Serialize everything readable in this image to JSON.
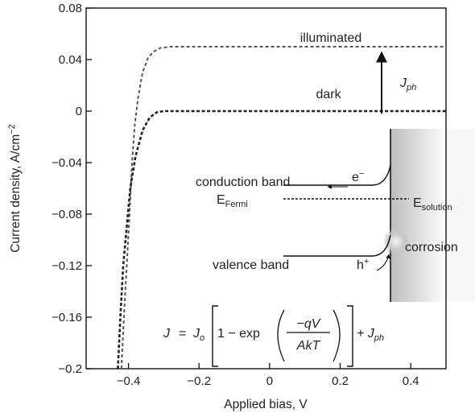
{
  "chart_data": {
    "type": "line",
    "xlabel": "Applied bias, V",
    "ylabel": "Current density, A/cm",
    "ylabel_superscript": "−2",
    "xlim": [
      -0.52,
      0.5
    ],
    "ylim": [
      -0.2,
      0.08
    ],
    "x_ticks": [
      {
        "v": -0.4,
        "label": "−0.4"
      },
      {
        "v": -0.2,
        "label": "−0.2"
      },
      {
        "v": 0,
        "label": "0"
      },
      {
        "v": 0.2,
        "label": "0.2"
      },
      {
        "v": 0.4,
        "label": "0.4"
      }
    ],
    "y_ticks": [
      {
        "v": 0.08,
        "label": "0.08"
      },
      {
        "v": 0.04,
        "label": "0.04"
      },
      {
        "v": 0,
        "label": "0"
      },
      {
        "v": -0.04,
        "label": "−0.04"
      },
      {
        "v": -0.08,
        "label": "−0.08"
      },
      {
        "v": -0.12,
        "label": "−0.12"
      },
      {
        "v": -0.16,
        "label": "−0.16"
      },
      {
        "v": -0.2,
        "label": "−0.2"
      }
    ],
    "grid": false,
    "series": [
      {
        "name": "illuminated",
        "color": "#555555",
        "x": [
          -0.42,
          -0.413,
          -0.405,
          -0.397,
          -0.39,
          -0.382,
          -0.373,
          -0.36,
          -0.345,
          -0.33,
          -0.31,
          -0.28,
          -0.2,
          0,
          0.2,
          0.5
        ],
        "y": [
          -0.2,
          -0.16,
          -0.12,
          -0.08,
          -0.04,
          -0.01,
          0.01,
          0.03,
          0.041,
          0.046,
          0.049,
          0.05,
          0.05,
          0.05,
          0.05,
          0.05
        ]
      },
      {
        "name": "dark",
        "color": "#222222",
        "x": [
          -0.43,
          -0.423,
          -0.415,
          -0.405,
          -0.395,
          -0.38,
          -0.36,
          -0.34,
          -0.32,
          -0.3,
          -0.28,
          -0.2,
          0,
          0.2,
          0.5
        ],
        "y": [
          -0.2,
          -0.16,
          -0.12,
          -0.09,
          -0.06,
          -0.035,
          -0.015,
          -0.005,
          -0.001,
          0.0,
          0.0,
          0.0,
          0.0,
          0.0,
          0.0
        ]
      }
    ],
    "annotations": {
      "illuminated": "illuminated",
      "dark": "dark",
      "jph": "J",
      "jph_sub": "ph",
      "conduction_band": "conduction band",
      "valence_band": "valence band",
      "electron": "e",
      "electron_sup": "−",
      "hole": "h",
      "hole_sup": "+",
      "e_fermi": "E",
      "e_fermi_sub": "Fermi",
      "e_solution": "E",
      "e_solution_sub": "solution",
      "corrosion": "corrosion"
    },
    "equation": {
      "lhs": "J",
      "j0": "J",
      "j0_sub": "o",
      "one_minus_exp": "1 − exp",
      "numerator": "−qV",
      "denominator": "AkT",
      "plus_j": "+ J",
      "plus_j_sub": "ph"
    }
  }
}
